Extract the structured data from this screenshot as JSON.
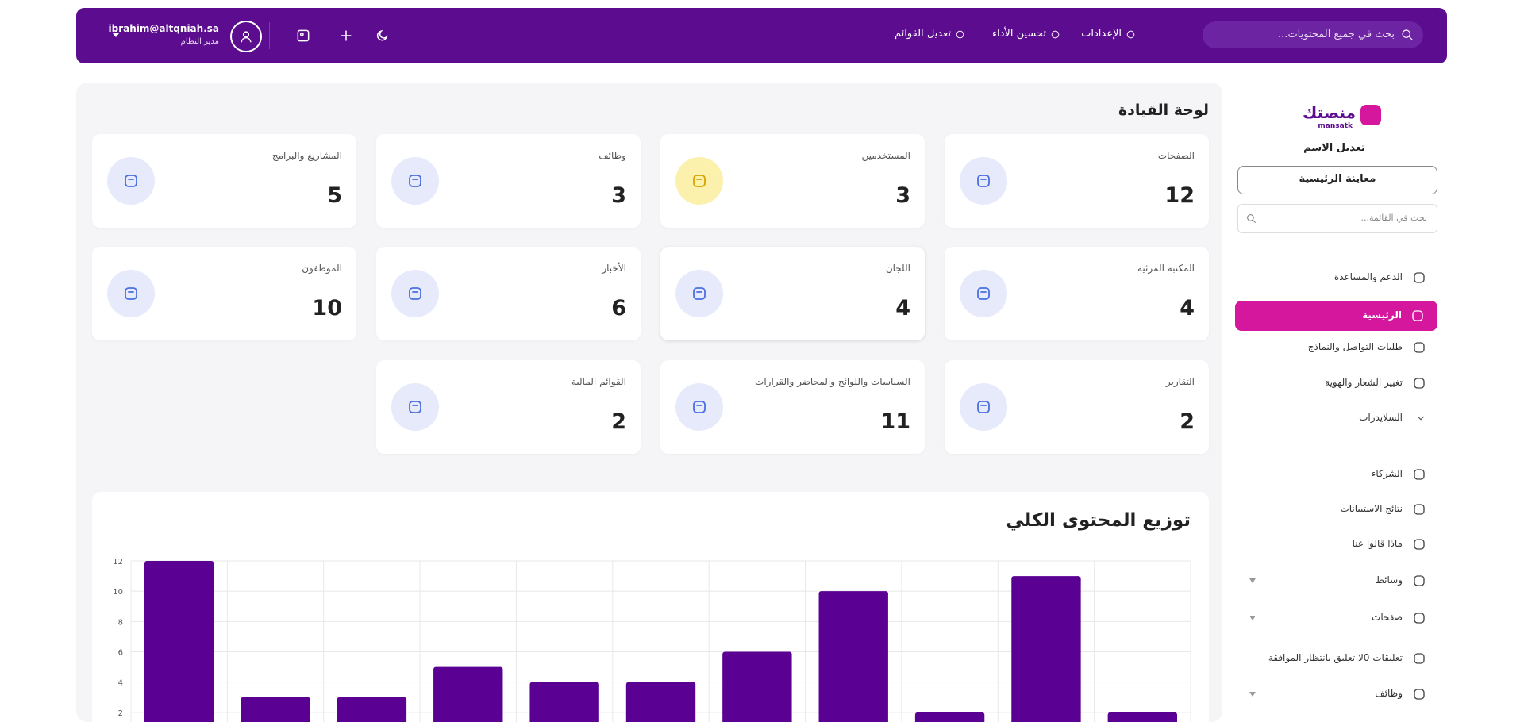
{
  "header": {
    "search_placeholder": "بحث في جميع المحتويات...",
    "nav": [
      "الإعدادات",
      "تحسين الأداء",
      "تعديل القوائم"
    ],
    "user_email": "ibrahim@altqniah.sa",
    "user_role": "مدير النظام"
  },
  "sidebar": {
    "logo_ar": "منصتك",
    "logo_en": "mansatk",
    "site_name": "تعديل الاسم",
    "preview_button": "معاينة الرئيسية",
    "search_placeholder": "بحث في القائمة...",
    "menu": [
      {
        "label": "الدعم والمساعدة"
      },
      {
        "label": "الرئيسية",
        "active": true
      },
      {
        "label": "طلبات التواصل والنماذج"
      },
      {
        "label": "تغيير الشعار والهوية"
      },
      {
        "label": "السلايدرات",
        "chevron": true
      },
      {
        "label": "الشركاء"
      },
      {
        "label": "نتائج الاستبيانات"
      },
      {
        "label": "ماذا قالوا عنا"
      },
      {
        "label": "وسائط",
        "expandable": true
      },
      {
        "label": "صفحات",
        "expandable": true
      },
      {
        "label": "تعليقات 0لا تعليق بانتظار الموافقة"
      },
      {
        "label": "وظائف",
        "expandable": true
      }
    ]
  },
  "dashboard": {
    "title": "لوحة القيادة",
    "cards": [
      {
        "label": "الصفحات",
        "value": "12"
      },
      {
        "label": "المستخدمين",
        "value": "3"
      },
      {
        "label": "وظائف",
        "value": "3"
      },
      {
        "label": "المشاريع والبرامج",
        "value": "5"
      },
      {
        "label": "المكتبة المرئية",
        "value": "4"
      },
      {
        "label": "اللجان",
        "value": "4"
      },
      {
        "label": "الأخبار",
        "value": "6"
      },
      {
        "label": "الموظفون",
        "value": "10"
      },
      {
        "label": "التقارير",
        "value": "2"
      },
      {
        "label": "السياسات واللوائح والمحاضر والقرارات",
        "value": "11"
      },
      {
        "label": "القوائم المالية",
        "value": "2"
      }
    ]
  },
  "chart_data": {
    "type": "bar",
    "title": "توزيع المحتوى الكلي",
    "categories": [
      null,
      null,
      null,
      null,
      null,
      null,
      null,
      null,
      null,
      null,
      null
    ],
    "values": [
      12,
      3,
      3,
      5,
      4,
      4,
      6,
      10,
      2,
      11,
      2
    ],
    "color": "#5a0092",
    "ylim": [
      0,
      12
    ],
    "yticks": [
      2,
      4,
      6,
      8,
      10,
      12
    ],
    "grid": true
  }
}
